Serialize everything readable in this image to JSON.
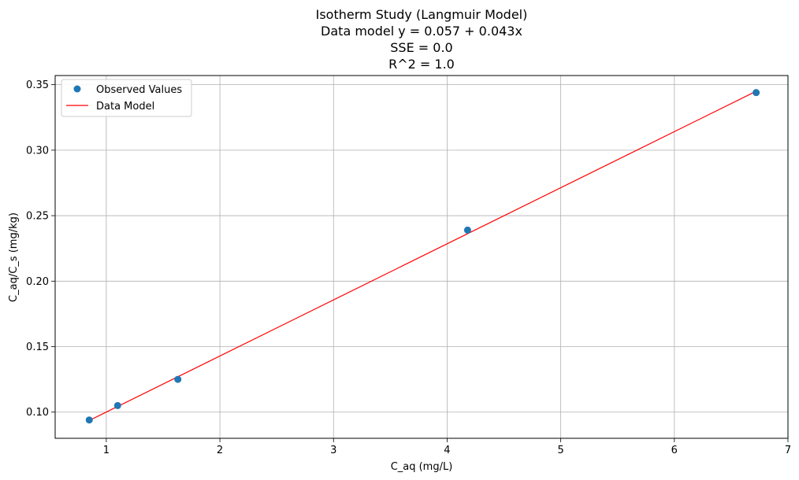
{
  "chart_data": {
    "type": "scatter",
    "title_lines": [
      "Isotherm Study (Langmuir Model)",
      "Data model y = 0.057 + 0.043x",
      "SSE = 0.0",
      "R^2 = 1.0"
    ],
    "xlabel": "C_aq (mg/L)",
    "ylabel": "C_aq/C_s  (mg/kg)",
    "xlim": [
      0.55,
      7.0
    ],
    "ylim": [
      0.08,
      0.357
    ],
    "xticks": [
      1,
      2,
      3,
      4,
      5,
      6,
      7
    ],
    "xtick_labels": [
      "1",
      "2",
      "3",
      "4",
      "5",
      "6",
      "7"
    ],
    "yticks": [
      0.1,
      0.15,
      0.2,
      0.25,
      0.3,
      0.35
    ],
    "ytick_labels": [
      "0.10",
      "0.15",
      "0.20",
      "0.25",
      "0.30",
      "0.35"
    ],
    "grid": true,
    "legend_position": "top-left",
    "series": [
      {
        "name": "Observed Values",
        "kind": "scatter",
        "color": "#1f77b4",
        "x": [
          0.85,
          1.1,
          1.63,
          4.18,
          6.72
        ],
        "y": [
          0.094,
          0.105,
          0.125,
          0.239,
          0.344
        ]
      },
      {
        "name": "Data Model",
        "kind": "line",
        "color": "#ff0000",
        "intercept": 0.057,
        "slope": 0.043,
        "x": [
          0.85,
          6.72
        ],
        "y": [
          0.0936,
          0.345
        ]
      }
    ]
  }
}
